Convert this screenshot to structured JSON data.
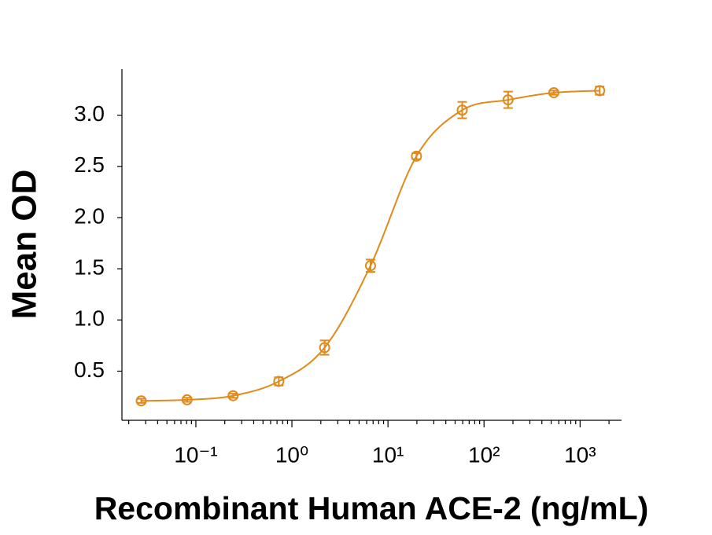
{
  "chart_data": {
    "type": "scatter",
    "xlabel": "Recombinant Human ACE-2 (ng/mL)",
    "ylabel": "Mean OD",
    "x": [
      0.027,
      0.081,
      0.244,
      0.73,
      2.19,
      6.58,
      19.8,
      59.3,
      178,
      533,
      1600
    ],
    "series": [
      {
        "color": "#e08a1c",
        "values": [
          0.21,
          0.22,
          0.26,
          0.4,
          0.73,
          1.53,
          2.6,
          3.05,
          3.15,
          3.22,
          3.24
        ],
        "errors": [
          0.02,
          0.02,
          0.02,
          0.04,
          0.07,
          0.06,
          0.03,
          0.08,
          0.08,
          0.02,
          0.04
        ]
      }
    ],
    "fit_line": true,
    "xscale": "log",
    "minor_ticks": true,
    "xlim": [
      0.017,
      2700
    ],
    "ylim": [
      0.02,
      3.45
    ],
    "xticks": [
      {
        "value": 0.1,
        "label": "10⁻¹"
      },
      {
        "value": 1,
        "label": "10⁰"
      },
      {
        "value": 10,
        "label": "10¹"
      },
      {
        "value": 100,
        "label": "10²"
      },
      {
        "value": 1000,
        "label": "10³"
      }
    ],
    "yticks": [
      0.5,
      {
        "value": 1,
        "label": "1.0"
      },
      1.5,
      {
        "value": 2,
        "label": "2.0"
      },
      2.5,
      {
        "value": 3,
        "label": "3.0"
      }
    ]
  }
}
